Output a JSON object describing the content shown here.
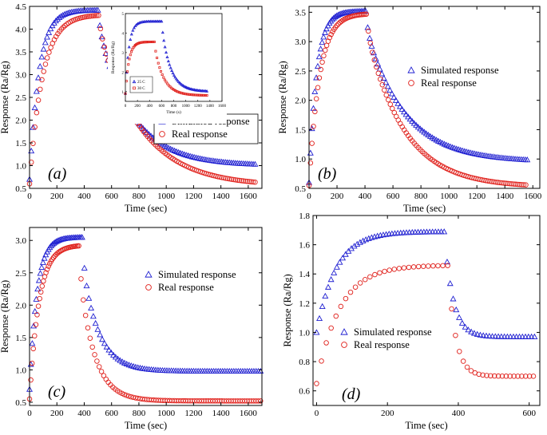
{
  "chart_data": [
    {
      "type": "scatter",
      "panel_label": "(a)",
      "xlabel": "Time (sec)",
      "ylabel": "Response (Ra/Rg)",
      "xlim": [
        0,
        1700
      ],
      "ylim": [
        0.5,
        4.5
      ],
      "xticks": [
        "0",
        "200",
        "400",
        "600",
        "800",
        "1000",
        "1200",
        "1400",
        "1600"
      ],
      "yticks": [
        "0.5",
        "1.0",
        "1.5",
        "2.0",
        "2.5",
        "3.0",
        "3.5",
        "4.0",
        "4.5"
      ],
      "legend_position": "center-right",
      "series": [
        {
          "name": "Simulated response",
          "marker": "triangle",
          "color": "#1f1fd1",
          "baseline": 0.7,
          "peak": 4.42,
          "tau_rise": 70,
          "t_off": 500,
          "end": 1.0,
          "tau_decay": 250,
          "amp_fast": 0.35,
          "tau_fast": 22,
          "t_end": 1650,
          "n_rise": 40,
          "n_decay": 80
        },
        {
          "name": "Real response",
          "marker": "circle",
          "color": "#e0201b",
          "baseline": 0.6,
          "peak": 4.32,
          "tau_rise": 95,
          "t_off": 505,
          "end": 0.55,
          "tau_decay": 310,
          "amp_fast": 0.3,
          "tau_fast": 20,
          "t_end": 1650,
          "n_rise": 40,
          "n_decay": 80
        }
      ],
      "inset": {
        "xlabel": "Time (s)",
        "ylabel": "Response (Ra/Rg)",
        "xlim": [
          0,
          1600
        ],
        "ylim": [
          0.5,
          5.0
        ],
        "xticks": [
          "0",
          "200",
          "400",
          "600",
          "800",
          "1000",
          "1200",
          "1400",
          "1600"
        ],
        "yticks": [
          "1",
          "2",
          "3",
          "4",
          "5"
        ],
        "series": [
          {
            "name": "25 C",
            "marker": "triangle",
            "color": "#1f1fd1",
            "baseline": 0.9,
            "peak": 4.6,
            "tau_rise": 60,
            "t_off": 600,
            "end": 1.0,
            "tau_decay": 150,
            "amp_fast": 0.3,
            "tau_fast": 20,
            "t_end": 1350,
            "n_rise": 30,
            "n_decay": 40
          },
          {
            "name": "30 C",
            "marker": "square",
            "color": "#e0201b",
            "baseline": 0.9,
            "peak": 3.55,
            "tau_rise": 60,
            "t_off": 480,
            "end": 0.8,
            "tau_decay": 150,
            "amp_fast": 0.2,
            "tau_fast": 20,
            "t_end": 1350,
            "n_rise": 30,
            "n_decay": 40
          }
        ]
      }
    },
    {
      "type": "scatter",
      "panel_label": "(b)",
      "xlabel": "Time (sec)",
      "ylabel": "Response (Ra/Rg)",
      "xlim": [
        0,
        1650
      ],
      "ylim": [
        0.5,
        3.6
      ],
      "xticks": [
        "0",
        "200",
        "400",
        "600",
        "800",
        "1000",
        "1200",
        "1400",
        "1600"
      ],
      "yticks": [
        "0.5",
        "1.0",
        "1.5",
        "2.0",
        "2.5",
        "3.0",
        "3.5"
      ],
      "legend_position": "upper-right",
      "series": [
        {
          "name": "Simulated response",
          "marker": "triangle",
          "color": "#1f1fd1",
          "baseline": 0.6,
          "peak": 3.52,
          "tau_rise": 55,
          "t_off": 405,
          "end": 0.95,
          "tau_decay": 280,
          "amp_fast": 0.3,
          "tau_fast": 18,
          "t_end": 1560,
          "n_rise": 40,
          "n_decay": 80
        },
        {
          "name": "Real response",
          "marker": "circle",
          "color": "#e0201b",
          "baseline": 0.55,
          "peak": 3.48,
          "tau_rise": 75,
          "t_off": 410,
          "end": 0.52,
          "tau_decay": 270,
          "amp_fast": 0.3,
          "tau_fast": 18,
          "t_end": 1550,
          "n_rise": 40,
          "n_decay": 80
        }
      ]
    },
    {
      "type": "scatter",
      "panel_label": "(c)",
      "xlabel": "Time (sec)",
      "ylabel": "Response (Ra/Rg)",
      "xlim": [
        0,
        1700
      ],
      "ylim": [
        0.45,
        3.2
      ],
      "xticks": [
        "0",
        "200",
        "400",
        "600",
        "800",
        "1000",
        "1200",
        "1400",
        "1600"
      ],
      "yticks": [
        "0.5",
        "1.0",
        "1.5",
        "2.0",
        "2.5",
        "3.0"
      ],
      "legend_position": "upper-right",
      "series": [
        {
          "name": "Simulated response",
          "marker": "triangle",
          "color": "#1f1fd1",
          "baseline": 0.7,
          "peak": 3.05,
          "tau_rise": 55,
          "t_off": 385,
          "end": 0.98,
          "tau_decay": 120,
          "amp_fast": 0.4,
          "tau_fast": 15,
          "t_end": 1690,
          "n_rise": 40,
          "n_decay": 80
        },
        {
          "name": "Real response",
          "marker": "circle",
          "color": "#e0201b",
          "baseline": 0.55,
          "peak": 2.93,
          "tau_rise": 70,
          "t_off": 360,
          "end": 0.52,
          "tau_decay": 110,
          "amp_fast": 0.35,
          "tau_fast": 15,
          "t_end": 1690,
          "n_rise": 40,
          "n_decay": 80
        }
      ]
    },
    {
      "type": "scatter",
      "panel_label": "(d)",
      "xlabel": "Time (sec)",
      "ylabel": "Response (Ra/Rg)",
      "xlim": [
        -10,
        630
      ],
      "ylim": [
        0.5,
        1.8
      ],
      "xticks": [
        "0",
        "200",
        "400",
        "600"
      ],
      "yticks": [
        "0.6",
        "0.8",
        "1.0",
        "1.2",
        "1.4",
        "1.6",
        "1.8"
      ],
      "legend_position": "center-right",
      "series": [
        {
          "name": "Simulated response",
          "marker": "triangle",
          "color": "#1f1fd1",
          "baseline": 1.0,
          "peak": 1.69,
          "tau_rise": 55,
          "t_off": 360,
          "end": 0.97,
          "tau_decay": 25,
          "amp_fast": 0.0,
          "tau_fast": 10,
          "t_end": 615,
          "n_rise": 45,
          "n_decay": 30
        },
        {
          "name": "Real response",
          "marker": "circle",
          "color": "#e0201b",
          "baseline": 0.65,
          "peak": 1.46,
          "tau_rise": 65,
          "t_off": 370,
          "end": 0.7,
          "tau_decay": 22,
          "amp_fast": 0.0,
          "tau_fast": 10,
          "t_end": 612,
          "n_rise": 28,
          "n_decay": 22
        }
      ]
    }
  ]
}
